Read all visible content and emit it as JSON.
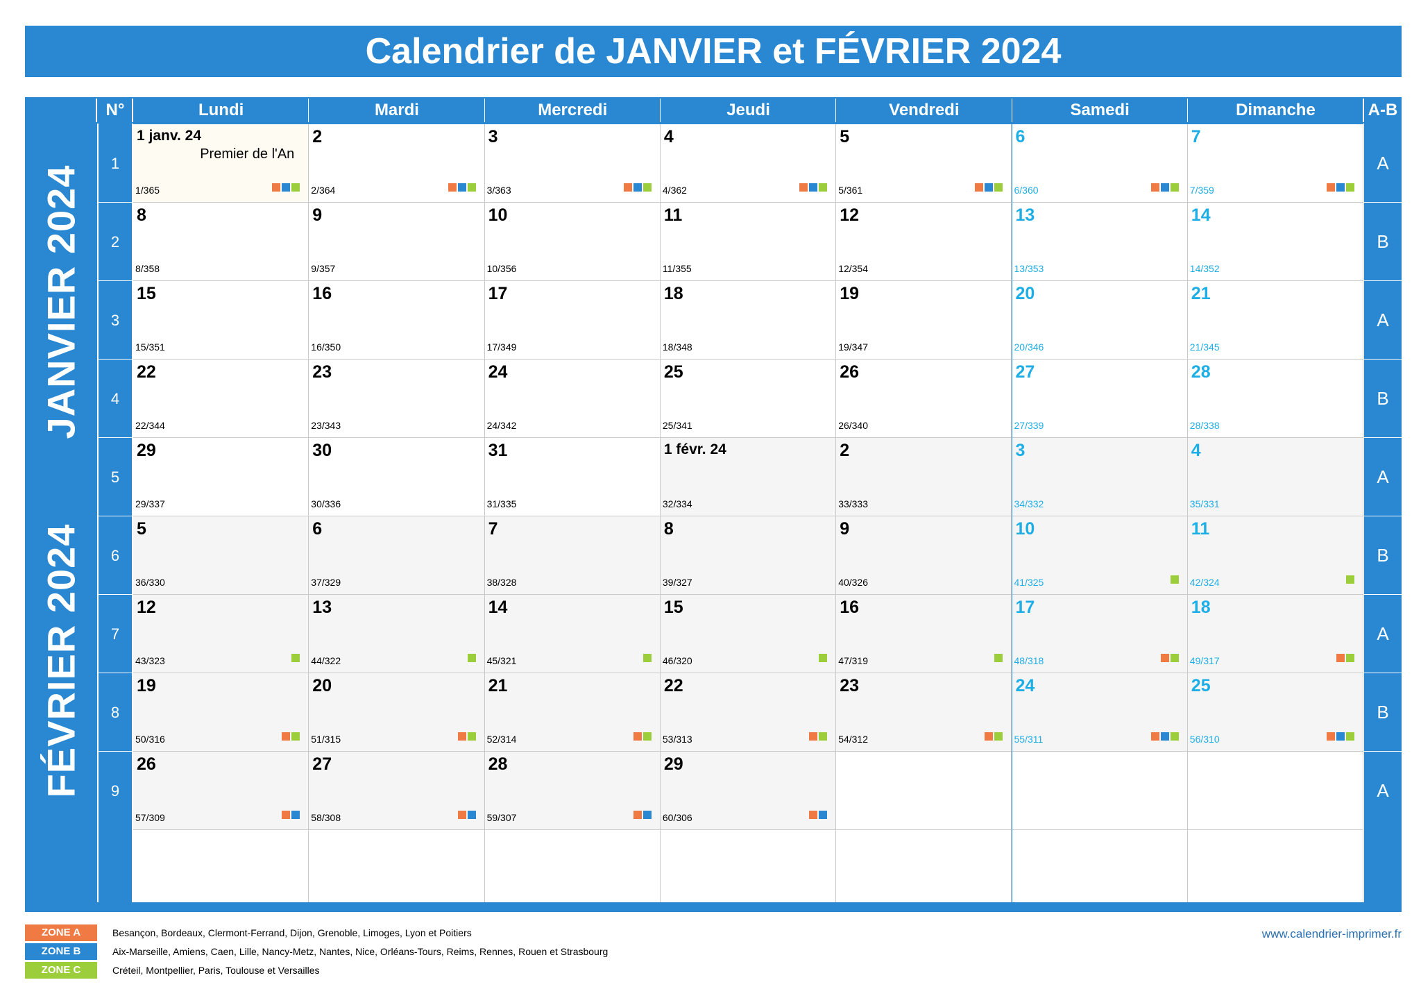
{
  "title": "Calendrier de JANVIER et FÉVRIER 2024",
  "header": {
    "num": "N°",
    "days": [
      "Lundi",
      "Mardi",
      "Mercredi",
      "Jeudi",
      "Vendredi",
      "Samedi",
      "Dimanche"
    ],
    "ab": "A-B"
  },
  "months": {
    "january": "JANVIER 2024",
    "february": "FÉVRIER 2024"
  },
  "weeks": [
    {
      "num": "1",
      "ab": "A"
    },
    {
      "num": "2",
      "ab": "B"
    },
    {
      "num": "3",
      "ab": "A"
    },
    {
      "num": "4",
      "ab": "B"
    },
    {
      "num": "5",
      "ab": "A"
    },
    {
      "num": "6",
      "ab": "B"
    },
    {
      "num": "7",
      "ab": "A"
    },
    {
      "num": "8",
      "ab": "B"
    },
    {
      "num": "9",
      "ab": "A"
    }
  ],
  "days": [
    {
      "d": "1 janv. 24",
      "y": "1/365",
      "m": "jan",
      "h": "Premier de l'An",
      "z": "ABC"
    },
    {
      "d": "2",
      "y": "2/364",
      "m": "jan",
      "z": "ABC"
    },
    {
      "d": "3",
      "y": "3/363",
      "m": "jan",
      "z": "ABC"
    },
    {
      "d": "4",
      "y": "4/362",
      "m": "jan",
      "z": "ABC"
    },
    {
      "d": "5",
      "y": "5/361",
      "m": "jan",
      "z": "ABC"
    },
    {
      "d": "6",
      "y": "6/360",
      "m": "jan",
      "z": "ABC"
    },
    {
      "d": "7",
      "y": "7/359",
      "m": "jan",
      "z": "ABC"
    },
    {
      "d": "8",
      "y": "8/358",
      "m": "jan",
      "z": ""
    },
    {
      "d": "9",
      "y": "9/357",
      "m": "jan",
      "z": ""
    },
    {
      "d": "10",
      "y": "10/356",
      "m": "jan",
      "z": ""
    },
    {
      "d": "11",
      "y": "11/355",
      "m": "jan",
      "z": ""
    },
    {
      "d": "12",
      "y": "12/354",
      "m": "jan",
      "z": ""
    },
    {
      "d": "13",
      "y": "13/353",
      "m": "jan",
      "z": ""
    },
    {
      "d": "14",
      "y": "14/352",
      "m": "jan",
      "z": ""
    },
    {
      "d": "15",
      "y": "15/351",
      "m": "jan",
      "z": ""
    },
    {
      "d": "16",
      "y": "16/350",
      "m": "jan",
      "z": ""
    },
    {
      "d": "17",
      "y": "17/349",
      "m": "jan",
      "z": ""
    },
    {
      "d": "18",
      "y": "18/348",
      "m": "jan",
      "z": ""
    },
    {
      "d": "19",
      "y": "19/347",
      "m": "jan",
      "z": ""
    },
    {
      "d": "20",
      "y": "20/346",
      "m": "jan",
      "z": ""
    },
    {
      "d": "21",
      "y": "21/345",
      "m": "jan",
      "z": ""
    },
    {
      "d": "22",
      "y": "22/344",
      "m": "jan",
      "z": ""
    },
    {
      "d": "23",
      "y": "23/343",
      "m": "jan",
      "z": ""
    },
    {
      "d": "24",
      "y": "24/342",
      "m": "jan",
      "z": ""
    },
    {
      "d": "25",
      "y": "25/341",
      "m": "jan",
      "z": ""
    },
    {
      "d": "26",
      "y": "26/340",
      "m": "jan",
      "z": ""
    },
    {
      "d": "27",
      "y": "27/339",
      "m": "jan",
      "z": ""
    },
    {
      "d": "28",
      "y": "28/338",
      "m": "jan",
      "z": ""
    },
    {
      "d": "29",
      "y": "29/337",
      "m": "jan",
      "z": ""
    },
    {
      "d": "30",
      "y": "30/336",
      "m": "jan",
      "z": ""
    },
    {
      "d": "31",
      "y": "31/335",
      "m": "jan",
      "z": ""
    },
    {
      "d": "1 févr. 24",
      "y": "32/334",
      "m": "feb",
      "z": ""
    },
    {
      "d": "2",
      "y": "33/333",
      "m": "feb",
      "z": ""
    },
    {
      "d": "3",
      "y": "34/332",
      "m": "feb",
      "z": ""
    },
    {
      "d": "4",
      "y": "35/331",
      "m": "feb",
      "z": ""
    },
    {
      "d": "5",
      "y": "36/330",
      "m": "feb",
      "z": ""
    },
    {
      "d": "6",
      "y": "37/329",
      "m": "feb",
      "z": ""
    },
    {
      "d": "7",
      "y": "38/328",
      "m": "feb",
      "z": ""
    },
    {
      "d": "8",
      "y": "39/327",
      "m": "feb",
      "z": ""
    },
    {
      "d": "9",
      "y": "40/326",
      "m": "feb",
      "z": ""
    },
    {
      "d": "10",
      "y": "41/325",
      "m": "feb",
      "z": "C"
    },
    {
      "d": "11",
      "y": "42/324",
      "m": "feb",
      "z": "C"
    },
    {
      "d": "12",
      "y": "43/323",
      "m": "feb",
      "z": "C"
    },
    {
      "d": "13",
      "y": "44/322",
      "m": "feb",
      "z": "C"
    },
    {
      "d": "14",
      "y": "45/321",
      "m": "feb",
      "z": "C"
    },
    {
      "d": "15",
      "y": "46/320",
      "m": "feb",
      "z": "C"
    },
    {
      "d": "16",
      "y": "47/319",
      "m": "feb",
      "z": "C"
    },
    {
      "d": "17",
      "y": "48/318",
      "m": "feb",
      "z": "AC"
    },
    {
      "d": "18",
      "y": "49/317",
      "m": "feb",
      "z": "AC"
    },
    {
      "d": "19",
      "y": "50/316",
      "m": "feb",
      "z": "AC"
    },
    {
      "d": "20",
      "y": "51/315",
      "m": "feb",
      "z": "AC"
    },
    {
      "d": "21",
      "y": "52/314",
      "m": "feb",
      "z": "AC"
    },
    {
      "d": "22",
      "y": "53/313",
      "m": "feb",
      "z": "AC"
    },
    {
      "d": "23",
      "y": "54/312",
      "m": "feb",
      "z": "AC"
    },
    {
      "d": "24",
      "y": "55/311",
      "m": "feb",
      "z": "ABC"
    },
    {
      "d": "25",
      "y": "56/310",
      "m": "feb",
      "z": "ABC"
    },
    {
      "d": "26",
      "y": "57/309",
      "m": "feb",
      "z": "AB"
    },
    {
      "d": "27",
      "y": "58/308",
      "m": "feb",
      "z": "AB"
    },
    {
      "d": "28",
      "y": "59/307",
      "m": "feb",
      "z": "AB"
    },
    {
      "d": "29",
      "y": "60/306",
      "m": "feb",
      "z": "AB"
    }
  ],
  "colors": {
    "blue": "#2a88d3",
    "weekend": "#1eaee6",
    "zone_a": "#ef7a43",
    "zone_b": "#2a88d3",
    "zone_c": "#9ccd3a"
  },
  "legend": [
    {
      "label": "ZONE A",
      "color": "#ef7a43",
      "cities": "Besançon, Bordeaux, Clermont-Ferrand, Dijon, Grenoble, Limoges, Lyon et Poitiers"
    },
    {
      "label": "ZONE B",
      "color": "#2a88d3",
      "cities": "Aix-Marseille, Amiens, Caen, Lille, Nancy-Metz, Nantes, Nice, Orléans-Tours, Reims, Rennes, Rouen et Strasbourg"
    },
    {
      "label": "ZONE C",
      "color": "#9ccd3a",
      "cities": "Créteil, Montpellier, Paris, Toulouse et Versailles"
    }
  ],
  "website": "www.calendrier-imprimer.fr"
}
